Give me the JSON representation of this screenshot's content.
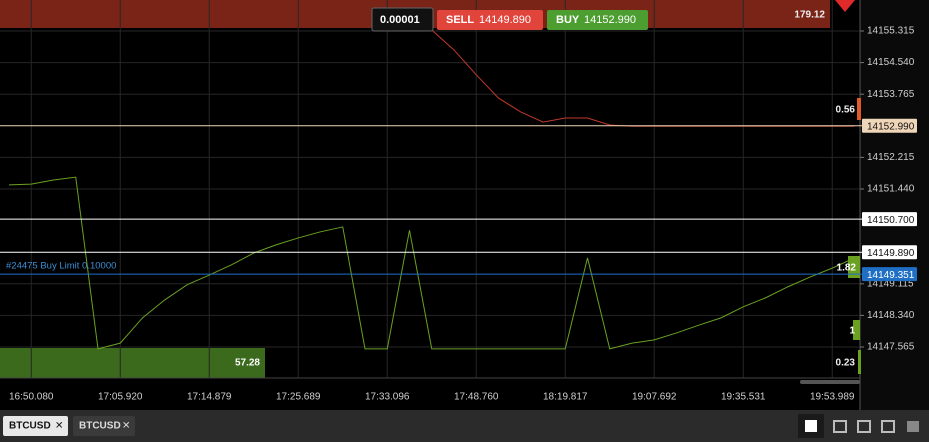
{
  "toolbar": {
    "quantity": "0.00001",
    "sell_label": "SELL",
    "sell_price": "14149.890",
    "buy_label": "BUY",
    "buy_price": "14152.990"
  },
  "chart_data": {
    "type": "line",
    "categories": [
      null,
      "16:50.080",
      null,
      null,
      null,
      "17:05.920",
      null,
      null,
      null,
      "17:14.879",
      null,
      null,
      null,
      "17:25.689",
      null,
      null,
      null,
      "17:33.096",
      null,
      null,
      null,
      "17:48.760",
      null,
      null,
      null,
      "18:19.817",
      null,
      null,
      null,
      "19:07.692",
      null,
      null,
      null,
      "19:35.531",
      null,
      null,
      null,
      "19:53.989",
      null
    ],
    "series": [
      {
        "color": "#c0392b",
        "values": [
          null,
          null,
          null,
          null,
          null,
          null,
          null,
          null,
          null,
          null,
          null,
          null,
          null,
          null,
          null,
          null,
          null,
          null,
          null,
          14155.34,
          14154.85,
          14154.24,
          14153.67,
          14153.33,
          14153.08,
          14153.18,
          14153.18,
          14153.01,
          14152.98,
          14152.98,
          14152.98,
          14152.98,
          14152.98,
          14152.98,
          14152.98,
          14152.98,
          14152.98,
          14152.98,
          14152.98
        ]
      },
      {
        "color": "#6aa121",
        "values": [
          14151.54,
          14151.56,
          14151.66,
          14151.73,
          14147.52,
          14147.66,
          14148.28,
          14148.72,
          14149.09,
          14149.33,
          14149.58,
          14149.87,
          14150.07,
          14150.24,
          14150.39,
          14150.51,
          14147.52,
          14147.52,
          14150.43,
          14147.52,
          14147.52,
          14147.52,
          14147.52,
          14147.52,
          14147.52,
          14147.52,
          14149.75,
          14147.52,
          14147.66,
          14147.74,
          14147.91,
          14148.1,
          14148.28,
          14148.55,
          14148.77,
          14149.04,
          14149.28,
          14149.5,
          14149.75
        ]
      }
    ],
    "ylim": [
      14146.805,
      14156.075
    ],
    "yticks": [
      {
        "value": 14155.315,
        "label": "14155.315"
      },
      {
        "value": 14154.54,
        "label": "14154.540"
      },
      {
        "value": 14153.765,
        "label": "14153.765"
      },
      {
        "value": 14152.215,
        "label": "14152.215"
      },
      {
        "value": 14151.44,
        "label": "14151.440"
      },
      {
        "value": 14149.115,
        "label": "14149.115"
      },
      {
        "value": 14148.34,
        "label": "14148.340"
      },
      {
        "value": 14147.565,
        "label": "14147.565"
      }
    ],
    "grid": true,
    "price_lines": [
      {
        "value": 14152.99,
        "label": "14152.990",
        "color": "#f0d6b8"
      },
      {
        "value": 14150.7,
        "label": "14150.700",
        "color": "#ffffff"
      },
      {
        "value": 14149.89,
        "label": "14149.890",
        "color": "#ffffff"
      },
      {
        "value": 14149.351,
        "label": "14149.351",
        "color": "#1f6fc5"
      }
    ],
    "order_label": "#24475 Buy Limit 0.10000",
    "volume_labels": [
      179.12,
      0.56,
      1.82,
      1,
      0.23,
      57.28
    ]
  },
  "tabs": [
    "BTCUSD",
    "BTCUSD"
  ]
}
